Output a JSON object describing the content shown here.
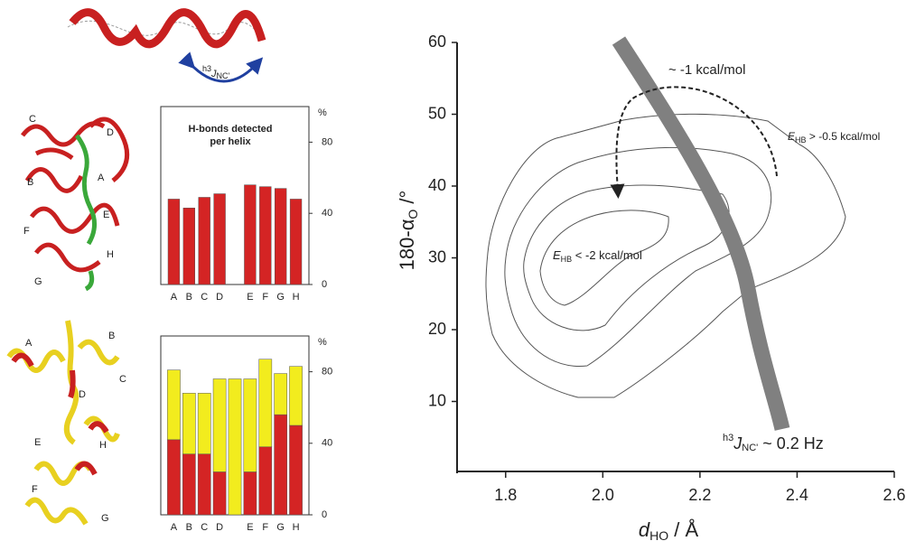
{
  "helix_label": [
    "h3",
    "J",
    "NC'"
  ],
  "structure_labels_top": [
    "C",
    "D",
    "B",
    "A",
    "E",
    "F",
    "H",
    "G"
  ],
  "structure_labels_bottom": [
    "A",
    "B",
    "C",
    "D",
    "E",
    "H",
    "F",
    "G"
  ],
  "chart_data": [
    {
      "type": "bar",
      "title": [
        "H-bonds detected",
        "per helix"
      ],
      "ylabel": "%",
      "categories": [
        "A",
        "B",
        "C",
        "D",
        null,
        "E",
        "F",
        "G",
        "H"
      ],
      "series": [
        {
          "color": "#d42424",
          "values": [
            48,
            43,
            49,
            51,
            null,
            56,
            55,
            54,
            48
          ]
        }
      ],
      "ylim": [
        0,
        100
      ],
      "yticks": [
        0,
        40,
        80
      ]
    },
    {
      "type": "stacked_bar",
      "ylabel": "%",
      "categories": [
        "A",
        "B",
        "C",
        "D",
        null,
        "E",
        "F",
        "G",
        "H"
      ],
      "series": [
        {
          "color": "#d42424",
          "values": [
            42,
            34,
            34,
            24,
            0,
            24,
            38,
            56,
            50
          ]
        },
        {
          "color": "#f2ec1e",
          "values": [
            39,
            34,
            34,
            52,
            76,
            52,
            49,
            23,
            33
          ]
        }
      ],
      "ylim": [
        0,
        100
      ],
      "yticks": [
        0,
        40,
        80
      ]
    },
    {
      "type": "contour",
      "xlabel": [
        "d",
        "HO",
        " / Å"
      ],
      "ylabel": [
        "180-α",
        "O",
        " /°"
      ],
      "xlim": [
        1.7,
        2.6
      ],
      "ylim": [
        0,
        60
      ],
      "xticks": [
        1.8,
        {
          "value": 2,
          "label": "2.0"
        },
        2.2,
        2.4,
        2.6
      ],
      "yticks": [
        10,
        20,
        30,
        40,
        50,
        60
      ],
      "annotations": [
        [
          "~ -1 kcal/mol"
        ],
        [
          "E",
          "HB",
          " > -0.5 kcal/mol"
        ],
        [
          "E",
          "HB",
          " < -2 kcal/mol"
        ],
        [
          "h3",
          "J",
          "NC'",
          " ~ 0.2 Hz"
        ]
      ]
    }
  ]
}
